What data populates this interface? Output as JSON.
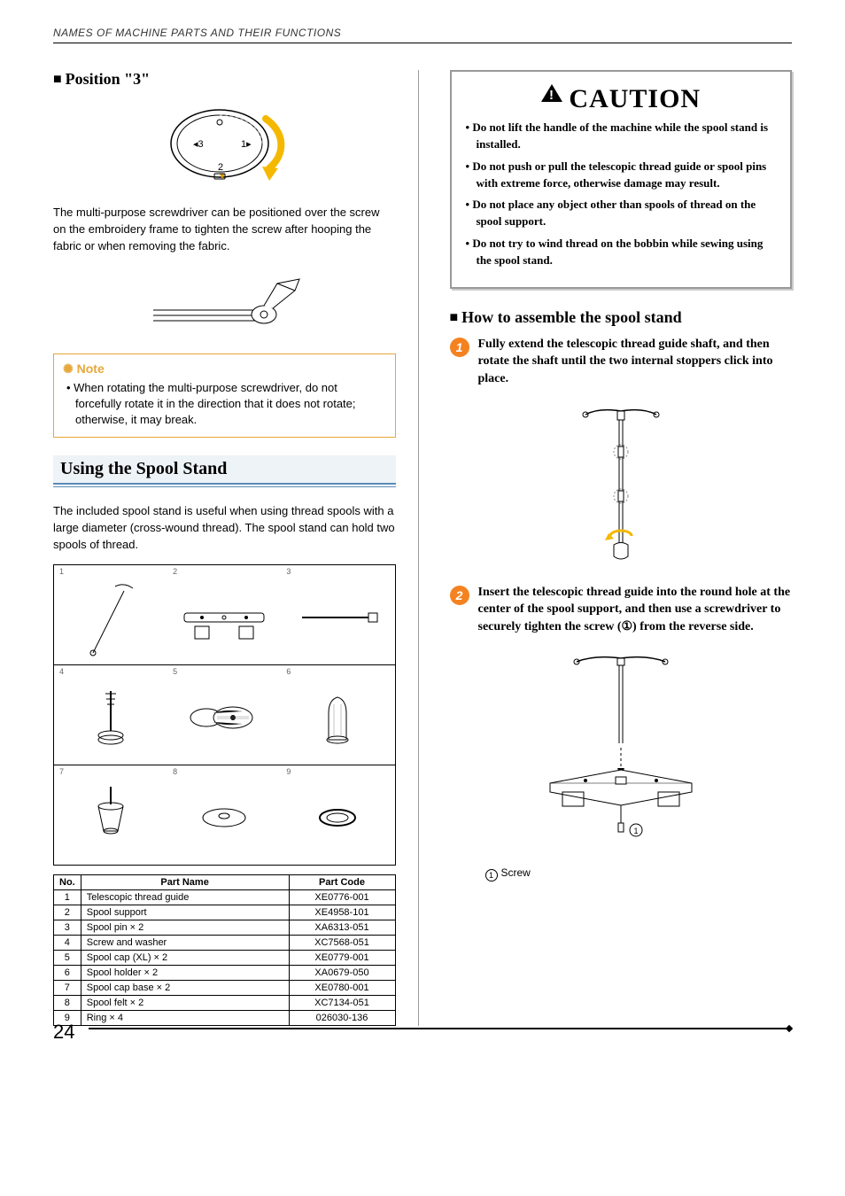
{
  "header": "NAMES OF MACHINE PARTS AND THEIR FUNCTIONS",
  "page_number": "24",
  "left": {
    "position3_title": "Position \"3\"",
    "position3_text": "The multi-purpose screwdriver can be positioned over the screw on the embroidery frame to tighten the screw after hooping the fabric or when removing the fabric.",
    "note_title": "Note",
    "note_body": "• When rotating the multi-purpose screwdriver, do not forcefully rotate it in the direction that it does not rotate; otherwise, it may break.",
    "section_title": "Using the Spool Stand",
    "section_intro": "The included spool stand is useful when using thread spools with a large diameter (cross-wound thread). The spool stand can hold two spools of thread.",
    "table_headers": {
      "no": "No.",
      "name": "Part Name",
      "code": "Part Code"
    },
    "parts": [
      {
        "no": "1",
        "name": "Telescopic thread guide",
        "code": "XE0776-001"
      },
      {
        "no": "2",
        "name": "Spool support",
        "code": "XE4958-101"
      },
      {
        "no": "3",
        "name": "Spool pin × 2",
        "code": "XA6313-051"
      },
      {
        "no": "4",
        "name": "Screw and washer",
        "code": "XC7568-051"
      },
      {
        "no": "5",
        "name": "Spool cap (XL) × 2",
        "code": "XE0779-001"
      },
      {
        "no": "6",
        "name": "Spool holder × 2",
        "code": "XA0679-050"
      },
      {
        "no": "7",
        "name": "Spool cap base × 2",
        "code": "XE0780-001"
      },
      {
        "no": "8",
        "name": "Spool felt × 2",
        "code": "XC7134-051"
      },
      {
        "no": "9",
        "name": "Ring × 4",
        "code": "026030-136"
      }
    ]
  },
  "right": {
    "caution_title": "CAUTION",
    "caution_items": [
      "Do not lift the handle of the machine while the spool stand is installed.",
      "Do not push or pull the telescopic thread guide or spool pins with extreme force, otherwise damage may result.",
      "Do not place any object other than spools of thread on the spool support.",
      "Do not try to wind thread on the bobbin while sewing using the spool stand."
    ],
    "assemble_title": "How to assemble the spool stand",
    "steps": [
      "Fully extend the telescopic thread guide shaft, and then rotate the shaft until the two internal stoppers click into place.",
      "Insert the telescopic thread guide into the round hole at the center of the spool support, and then use a screwdriver to securely tighten the screw (①) from the reverse side."
    ],
    "legend_1": "Screw"
  },
  "colors": {
    "accent_blue": "#5a8cb8",
    "note_orange": "#e6a83a",
    "step_orange": "#f58220",
    "arrow_yellow": "#f5b800"
  }
}
